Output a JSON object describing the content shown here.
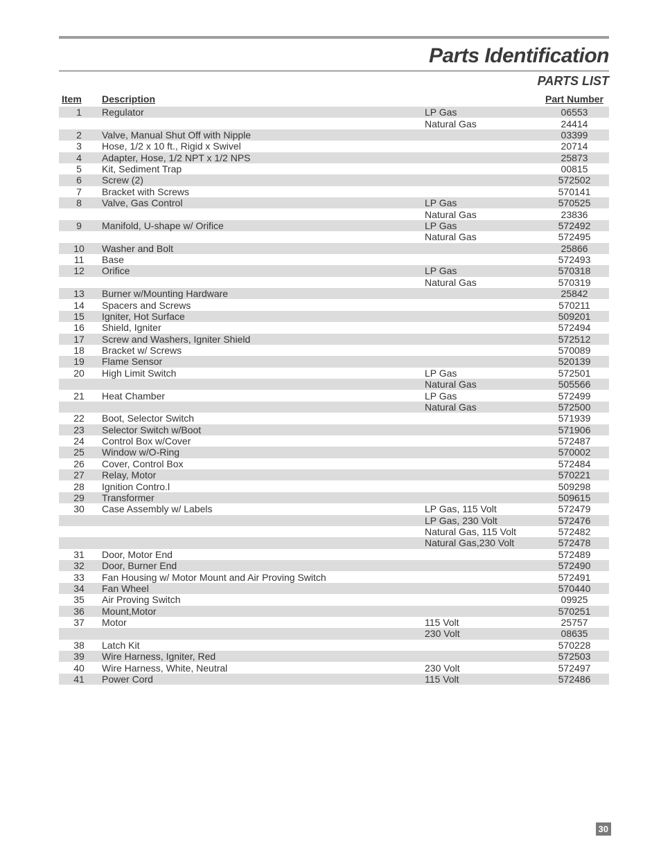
{
  "title": "Parts Identification",
  "subtitle": "PARTS LIST",
  "columns": {
    "item": "Item",
    "description": "Description",
    "part_number": "Part Number"
  },
  "page_number": "30",
  "row_shade_color": "#dcdcdc",
  "text_color": "#333333",
  "rows": [
    {
      "item": "1",
      "desc": "Regulator",
      "variant": "LP Gas",
      "part": "06553",
      "shaded": true
    },
    {
      "item": "",
      "desc": "",
      "variant": "Natural Gas",
      "part": "24414",
      "shaded": false
    },
    {
      "item": "2",
      "desc": "Valve, Manual Shut Off with Nipple",
      "variant": "",
      "part": "03399",
      "shaded": true
    },
    {
      "item": "3",
      "desc": "Hose, 1/2 x 10 ft., Rigid x Swivel",
      "variant": "",
      "part": "20714",
      "shaded": false
    },
    {
      "item": "4",
      "desc": "Adapter, Hose, 1/2 NPT x 1/2 NPS",
      "variant": "",
      "part": "25873",
      "shaded": true
    },
    {
      "item": "5",
      "desc": "Kit, Sediment Trap",
      "variant": "",
      "part": "00815",
      "shaded": false
    },
    {
      "item": "6",
      "desc": "Screw (2)",
      "variant": "",
      "part": "572502",
      "shaded": true
    },
    {
      "item": "7",
      "desc": "Bracket with Screws",
      "variant": "",
      "part": "570141",
      "shaded": false
    },
    {
      "item": "8",
      "desc": "Valve, Gas Control",
      "variant": "LP Gas",
      "part": "570525",
      "shaded": true
    },
    {
      "item": "",
      "desc": "",
      "variant": "Natural Gas",
      "part": "23836",
      "shaded": false
    },
    {
      "item": "9",
      "desc": "Manifold, U-shape w/ Orifice",
      "variant": "LP Gas",
      "part": "572492",
      "shaded": true
    },
    {
      "item": "",
      "desc": "",
      "variant": "Natural Gas",
      "part": "572495",
      "shaded": false
    },
    {
      "item": "10",
      "desc": "Washer and Bolt",
      "variant": "",
      "part": "25866",
      "shaded": true
    },
    {
      "item": "11",
      "desc": "Base",
      "variant": "",
      "part": "572493",
      "shaded": false
    },
    {
      "item": "12",
      "desc": "Orifice",
      "variant": "LP Gas",
      "part": "570318",
      "shaded": true
    },
    {
      "item": "",
      "desc": "",
      "variant": "Natural Gas",
      "part": "570319",
      "shaded": false
    },
    {
      "item": "13",
      "desc": "Burner w/Mounting Hardware",
      "variant": "",
      "part": "25842",
      "shaded": true
    },
    {
      "item": "14",
      "desc": "Spacers and Screws",
      "variant": "",
      "part": "570211",
      "shaded": false
    },
    {
      "item": "15",
      "desc": "Igniter, Hot Surface",
      "variant": "",
      "part": "509201",
      "shaded": true
    },
    {
      "item": "16",
      "desc": "Shield, Igniter",
      "variant": "",
      "part": "572494",
      "shaded": false
    },
    {
      "item": "17",
      "desc": "Screw and Washers, Igniter Shield",
      "variant": "",
      "part": "572512",
      "shaded": true
    },
    {
      "item": "18",
      "desc": "Bracket w/ Screws",
      "variant": "",
      "part": "570089",
      "shaded": false
    },
    {
      "item": "19",
      "desc": "Flame Sensor",
      "variant": "",
      "part": "520139",
      "shaded": true
    },
    {
      "item": "20",
      "desc": "High Limit Switch",
      "variant": "LP Gas",
      "part": "572501",
      "shaded": false
    },
    {
      "item": "",
      "desc": "",
      "variant": "Natural Gas",
      "part": "505566",
      "shaded": true
    },
    {
      "item": "21",
      "desc": "Heat Chamber",
      "variant": "LP Gas",
      "part": "572499",
      "shaded": false
    },
    {
      "item": "",
      "desc": "",
      "variant": "Natural Gas",
      "part": "572500",
      "shaded": true
    },
    {
      "item": "22",
      "desc": "Boot, Selector Switch",
      "variant": "",
      "part": "571939",
      "shaded": false
    },
    {
      "item": "23",
      "desc": "Selector Switch w/Boot",
      "variant": "",
      "part": "571906",
      "shaded": true
    },
    {
      "item": "24",
      "desc": "Control Box w/Cover",
      "variant": "",
      "part": "572487",
      "shaded": false
    },
    {
      "item": "25",
      "desc": "Window w/O-Ring",
      "variant": "",
      "part": "570002",
      "shaded": true
    },
    {
      "item": "26",
      "desc": "Cover, Control Box",
      "variant": "",
      "part": "572484",
      "shaded": false
    },
    {
      "item": "27",
      "desc": "Relay, Motor",
      "variant": "",
      "part": "570221",
      "shaded": true
    },
    {
      "item": "28",
      "desc": "Ignition Contro.l",
      "variant": "",
      "part": "509298",
      "shaded": false
    },
    {
      "item": "29",
      "desc": "Transformer",
      "variant": "",
      "part": "509615",
      "shaded": true
    },
    {
      "item": "30",
      "desc": "Case Assembly w/ Labels",
      "variant": "LP Gas, 115 Volt",
      "part": "572479",
      "shaded": false
    },
    {
      "item": "",
      "desc": "",
      "variant": "LP Gas, 230 Volt",
      "part": "572476",
      "shaded": true
    },
    {
      "item": "",
      "desc": "",
      "variant": "Natural Gas, 115 Volt",
      "part": "572482",
      "shaded": false
    },
    {
      "item": "",
      "desc": "",
      "variant": "Natural Gas,230 Volt",
      "part": "572478",
      "shaded": true
    },
    {
      "item": "31",
      "desc": "Door, Motor End",
      "variant": "",
      "part": "572489",
      "shaded": false
    },
    {
      "item": "32",
      "desc": "Door, Burner End",
      "variant": "",
      "part": "572490",
      "shaded": true
    },
    {
      "item": "33",
      "desc": "Fan Housing w/ Motor Mount and Air Proving Switch",
      "variant": "",
      "part": "572491",
      "shaded": false
    },
    {
      "item": "34",
      "desc": "Fan Wheel",
      "variant": "",
      "part": "570440",
      "shaded": true
    },
    {
      "item": "35",
      "desc": "Air Proving Switch",
      "variant": "",
      "part": "09925",
      "shaded": false
    },
    {
      "item": "36",
      "desc": "Mount,Motor",
      "variant": "",
      "part": "570251",
      "shaded": true
    },
    {
      "item": "37",
      "desc": "Motor",
      "variant": "115 Volt",
      "part": "25757",
      "shaded": false
    },
    {
      "item": "",
      "desc": "",
      "variant": "230 Volt",
      "part": "08635",
      "shaded": true
    },
    {
      "item": "38",
      "desc": "Latch Kit",
      "variant": "",
      "part": "570228",
      "shaded": false
    },
    {
      "item": "39",
      "desc": "Wire Harness, Igniter, Red",
      "variant": "",
      "part": "572503",
      "shaded": true
    },
    {
      "item": "40",
      "desc": "Wire Harness, White, Neutral",
      "variant": "230 Volt",
      "part": "572497",
      "shaded": false
    },
    {
      "item": "41",
      "desc": "Power Cord",
      "variant": "115 Volt",
      "part": "572486",
      "shaded": true
    }
  ]
}
